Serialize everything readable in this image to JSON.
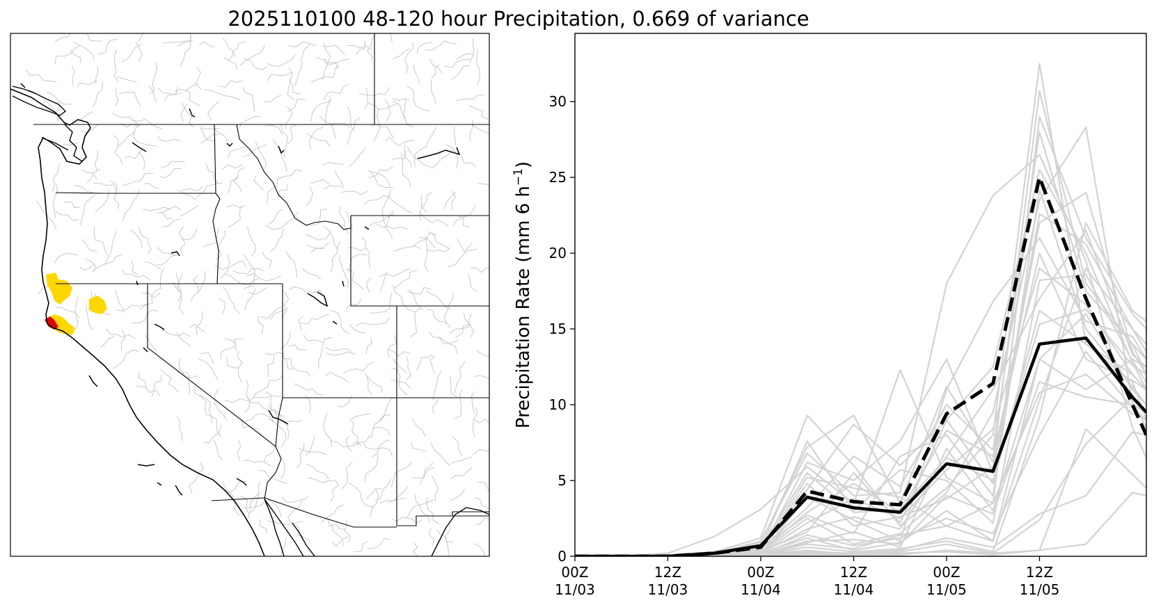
{
  "figure": {
    "title": "2025110100 48-120 hour Precipitation, 0.669 of variance"
  },
  "map": {
    "highlight_colors": {
      "moderate": "#FFD700",
      "high": "#E00000"
    },
    "basin_line_color": "#C8C8C8",
    "boundary_color": "#000000"
  },
  "chart_data": {
    "type": "line",
    "ylabel": "Precipitation Rate (mm 6 h",
    "ylabel_exponent": "−1",
    "ylabel_suffix": ")",
    "ylim": [
      0,
      34.5
    ],
    "yticks": [
      0,
      5,
      10,
      15,
      20,
      25,
      30
    ],
    "xlim": [
      0,
      12.3
    ],
    "xticks": [
      {
        "x": 0,
        "line1": "00Z",
        "line2": "11/03"
      },
      {
        "x": 2,
        "line1": "12Z",
        "line2": "11/03"
      },
      {
        "x": 4,
        "line1": "00Z",
        "line2": "11/04"
      },
      {
        "x": 6,
        "line1": "12Z",
        "line2": "11/04"
      },
      {
        "x": 8,
        "line1": "00Z",
        "line2": "11/05"
      },
      {
        "x": 10,
        "line1": "12Z",
        "line2": "11/05"
      }
    ],
    "x": [
      0,
      1,
      2,
      3,
      4,
      5,
      6,
      7,
      8,
      9,
      10,
      11,
      12,
      12.3
    ],
    "ensemble_color": "#D3D3D3",
    "mean": {
      "style": "solid",
      "color": "#000000",
      "values": [
        0,
        0,
        0,
        0.2,
        0.7,
        3.9,
        3.2,
        2.9,
        6.1,
        5.6,
        14.0,
        14.4,
        10.5,
        9.5
      ]
    },
    "control": {
      "style": "dashed",
      "color": "#000000",
      "values": [
        0,
        0,
        0,
        0.2,
        0.6,
        4.3,
        3.6,
        3.4,
        9.4,
        11.4,
        25.0,
        17.0,
        10.0,
        8.0
      ]
    },
    "ensemble": [
      [
        0,
        0,
        0.1,
        0.3,
        1.2,
        9.3,
        6.0,
        2.0,
        4.5,
        8.0,
        32.5,
        14.0,
        11.5,
        9.0
      ],
      [
        0,
        0,
        0,
        0.2,
        0.9,
        7.2,
        9.3,
        3.5,
        11.2,
        6.2,
        30.7,
        18.0,
        14.0,
        12.0
      ],
      [
        0,
        0,
        0.2,
        1.3,
        3.1,
        5.9,
        3.5,
        12.3,
        5.2,
        3.5,
        29.0,
        21.0,
        16.0,
        15.0
      ],
      [
        0,
        0,
        0,
        0.2,
        1.0,
        6.8,
        4.0,
        4.2,
        18.0,
        23.8,
        26.5,
        19.5,
        8.5,
        6.5
      ],
      [
        0,
        0,
        0,
        0.1,
        0.5,
        4.4,
        8.7,
        6.0,
        9.0,
        12.5,
        25.5,
        20.0,
        12.8,
        11.0
      ],
      [
        0,
        0,
        0,
        0.2,
        0.6,
        2.7,
        1.5,
        6.6,
        8.0,
        4.0,
        24.2,
        15.0,
        11.2,
        10.0
      ],
      [
        0,
        0,
        0,
        0.1,
        0.3,
        2.5,
        0.8,
        1.5,
        4.2,
        9.5,
        23.5,
        28.3,
        10.2,
        8.5
      ],
      [
        0,
        0,
        0,
        0.1,
        0.4,
        4.8,
        2.0,
        2.6,
        3.8,
        5.9,
        22.0,
        24.0,
        13.5,
        12.0
      ],
      [
        0,
        0,
        0,
        0.1,
        0.5,
        7.6,
        3.0,
        5.7,
        5.0,
        2.2,
        18.2,
        18.6,
        12.9,
        11.5
      ],
      [
        0,
        0,
        0,
        0.1,
        0.2,
        3.9,
        2.4,
        1.0,
        11.0,
        16.8,
        21.0,
        15.5,
        14.5,
        13.0
      ],
      [
        0,
        0,
        0,
        0.1,
        0.3,
        1.6,
        5.5,
        2.2,
        9.0,
        4.8,
        16.2,
        14.0,
        12.0,
        11.0
      ],
      [
        0,
        0,
        0,
        0,
        0.2,
        1.2,
        0.4,
        0.9,
        3.0,
        1.0,
        10.3,
        19.0,
        15.0,
        14.0
      ],
      [
        0,
        0,
        0,
        0.1,
        0.4,
        5.2,
        4.5,
        3.9,
        2.0,
        1.0,
        13.0,
        16.0,
        11.0,
        10.0
      ],
      [
        0,
        0,
        0,
        0,
        0.1,
        0.6,
        0.3,
        0.5,
        1.0,
        0.3,
        9.2,
        22.0,
        16.2,
        15.5
      ],
      [
        0,
        0,
        0,
        0,
        0.1,
        0.4,
        0.1,
        0.3,
        0.8,
        0.2,
        2.4,
        7.4,
        10.5,
        9.5
      ],
      [
        0,
        0,
        0,
        0,
        0,
        0.2,
        0.1,
        0.2,
        0.3,
        0.1,
        0.4,
        8.4,
        5.4,
        4.5
      ],
      [
        0,
        0,
        0,
        0,
        0.1,
        0.9,
        1.6,
        0.6,
        7.1,
        3.0,
        13.0,
        11.0,
        13.0,
        12.5
      ],
      [
        0,
        0,
        0,
        0.1,
        0.3,
        6.2,
        5.0,
        7.6,
        13.0,
        5.5,
        22.6,
        20.6,
        15.0,
        13.5
      ],
      [
        0,
        0,
        0,
        0,
        0.2,
        2.2,
        3.8,
        2.5,
        5.7,
        8.4,
        19.0,
        16.6,
        12.0,
        11.0
      ],
      [
        0,
        0,
        0,
        0,
        0.1,
        1.4,
        0.7,
        1.2,
        2.5,
        1.5,
        8.0,
        13.5,
        9.8,
        9.0
      ],
      [
        0,
        0,
        0,
        0,
        0.1,
        0.3,
        0.2,
        0.4,
        1.2,
        0.6,
        2.8,
        4.0,
        8.2,
        8.0
      ],
      [
        0,
        0,
        0,
        0,
        0,
        0.1,
        0.1,
        0.1,
        0.4,
        0.2,
        0.4,
        0.8,
        4.2,
        4.0
      ],
      [
        0,
        0,
        0,
        0.1,
        0.5,
        3.2,
        6.6,
        4.6,
        10.0,
        7.0,
        28.0,
        17.5,
        14.0,
        13.0
      ],
      [
        0,
        0,
        0,
        0.1,
        0.2,
        1.8,
        2.6,
        1.8,
        6.6,
        11.0,
        17.0,
        21.5,
        13.3,
        12.5
      ],
      [
        0,
        0,
        0,
        0,
        0.1,
        0.8,
        0.5,
        1.4,
        2.0,
        3.5,
        10.8,
        12.0,
        9.4,
        9.0
      ],
      [
        0,
        0,
        0,
        0.1,
        0.6,
        5.5,
        2.9,
        3.1,
        6.5,
        5.0,
        15.3,
        16.3,
        12.6,
        12.0
      ],
      [
        0,
        0,
        0,
        0.1,
        0.3,
        2.9,
        4.8,
        2.9,
        8.3,
        6.6,
        20.0,
        13.0,
        11.6,
        11.0
      ],
      [
        0,
        0,
        0,
        0,
        0.1,
        1.0,
        1.1,
        0.8,
        4.0,
        2.8,
        11.5,
        10.5,
        10.0,
        9.5
      ]
    ]
  }
}
